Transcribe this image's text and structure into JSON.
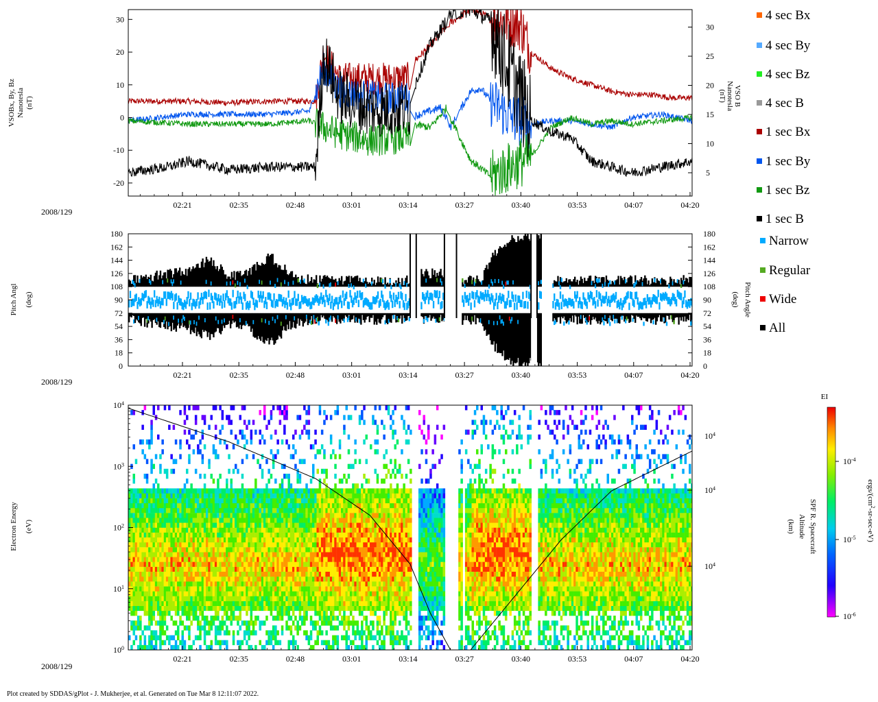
{
  "chart_data": [
    {
      "type": "line",
      "id": "mag-panel",
      "ylabel_left": [
        "VSOBx, By, Bz",
        "Nanotesla",
        "(nT)"
      ],
      "ylabel_right": [
        "VSO B",
        "Nanotesla",
        "(nT)"
      ],
      "ylim_left": [
        -24,
        33
      ],
      "ylim_right": [
        1,
        33
      ],
      "yticks_left": [
        "30",
        "20",
        "10",
        "0",
        "-10",
        "-20"
      ],
      "yticks_right": [
        "30",
        "25",
        "20",
        "15",
        "10",
        "5"
      ],
      "date": "2008/129",
      "x_time_min": [
        -30,
        250
      ],
      "xticks": [
        "02:21",
        "02:35",
        "02:48",
        "03:01",
        "03:14",
        "03:27",
        "03:40",
        "03:53",
        "04:07",
        "04:20"
      ],
      "series": [
        {
          "name": "1 sec Bx",
          "color": "#aa0000",
          "points": [
            [
              -30,
              5
            ],
            [
              0,
              5
            ],
            [
              20,
              4.5
            ],
            [
              40,
              5
            ],
            [
              63,
              5
            ],
            [
              67,
              20
            ],
            [
              75,
              12
            ],
            [
              95,
              12
            ],
            [
              110,
              12
            ],
            [
              110,
              16
            ],
            [
              120,
              22
            ],
            [
              130,
              29
            ],
            [
              140,
              33
            ],
            [
              145,
              32
            ],
            [
              150,
              30
            ],
            [
              160,
              29
            ],
            [
              165,
              28
            ],
            [
              170,
              20
            ],
            [
              180,
              15
            ],
            [
              190,
              12
            ],
            [
              200,
              10
            ],
            [
              210,
              8
            ],
            [
              220,
              7
            ],
            [
              230,
              7
            ],
            [
              240,
              6
            ],
            [
              250,
              6
            ]
          ]
        },
        {
          "name": "1 sec By",
          "color": "#0055ee",
          "points": [
            [
              -30,
              -1
            ],
            [
              0,
              1
            ],
            [
              20,
              1
            ],
            [
              40,
              1
            ],
            [
              60,
              2
            ],
            [
              67,
              15
            ],
            [
              75,
              8
            ],
            [
              95,
              6
            ],
            [
              110,
              6
            ],
            [
              110,
              0
            ],
            [
              120,
              2
            ],
            [
              125,
              3
            ],
            [
              128,
              0
            ],
            [
              130,
              -3
            ],
            [
              140,
              8
            ],
            [
              145,
              9
            ],
            [
              150,
              5
            ],
            [
              160,
              0
            ],
            [
              170,
              -2
            ],
            [
              180,
              -1
            ],
            [
              190,
              -1
            ],
            [
              200,
              -2
            ],
            [
              210,
              -3
            ],
            [
              220,
              0
            ],
            [
              235,
              1
            ],
            [
              250,
              -1
            ]
          ]
        },
        {
          "name": "1 sec Bz",
          "color": "#119911",
          "points": [
            [
              -30,
              -1
            ],
            [
              0,
              -2
            ],
            [
              20,
              -2
            ],
            [
              40,
              -2
            ],
            [
              60,
              -1
            ],
            [
              67,
              -3
            ],
            [
              75,
              -5
            ],
            [
              90,
              -7
            ],
            [
              110,
              -6
            ],
            [
              110,
              -2
            ],
            [
              120,
              -3
            ],
            [
              128,
              3
            ],
            [
              130,
              0
            ],
            [
              140,
              -13
            ],
            [
              150,
              -18
            ],
            [
              160,
              -15
            ],
            [
              170,
              -12
            ],
            [
              180,
              -3
            ],
            [
              190,
              0
            ],
            [
              200,
              -2
            ],
            [
              210,
              -1
            ],
            [
              220,
              -2
            ],
            [
              235,
              -1
            ],
            [
              250,
              0
            ]
          ]
        },
        {
          "name": "1 sec B",
          "color": "#000000",
          "points": [
            [
              -30,
              5
            ],
            [
              -10,
              6
            ],
            [
              0,
              7
            ],
            [
              20,
              5.5
            ],
            [
              40,
              6
            ],
            [
              63,
              6
            ],
            [
              67,
              25
            ],
            [
              75,
              18
            ],
            [
              90,
              16
            ],
            [
              110,
              16
            ],
            [
              110,
              18
            ],
            [
              120,
              27
            ],
            [
              130,
              32
            ],
            [
              140,
              33
            ],
            [
              150,
              31
            ],
            [
              160,
              22
            ],
            [
              170,
              14
            ],
            [
              180,
              12
            ],
            [
              190,
              11
            ],
            [
              200,
              7
            ],
            [
              210,
              6
            ],
            [
              220,
              5
            ],
            [
              235,
              6
            ],
            [
              250,
              7
            ]
          ]
        }
      ]
    },
    {
      "type": "scatter",
      "id": "pitch-panel",
      "ylabel_left": [
        "Pitch Angl",
        "(deg)"
      ],
      "ylabel_right": [
        "Pitch Angle",
        "(deg)"
      ],
      "ylim": [
        0,
        180
      ],
      "yticks": [
        "180",
        "162",
        "144",
        "126",
        "108",
        "90",
        "72",
        "54",
        "36",
        "18",
        "0"
      ],
      "date": "2008/129",
      "x_time_min": [
        -30,
        250
      ],
      "xticks": [
        "02:21",
        "02:35",
        "02:48",
        "03:01",
        "03:14",
        "03:27",
        "03:40",
        "03:53",
        "04:07",
        "04:20"
      ],
      "series_names": [
        "Narrow",
        "Regular",
        "Wide",
        "All"
      ],
      "envelope_upper": [
        [
          -30,
          117
        ],
        [
          0,
          130
        ],
        [
          10,
          145
        ],
        [
          20,
          122
        ],
        [
          30,
          130
        ],
        [
          40,
          150
        ],
        [
          50,
          125
        ],
        [
          60,
          117
        ],
        [
          80,
          117
        ],
        [
          100,
          117
        ],
        [
          110,
          117
        ],
        [
          110,
          180
        ],
        [
          115,
          180
        ],
        [
          115,
          126
        ],
        [
          128,
          126
        ],
        [
          128,
          180
        ],
        [
          135,
          180
        ],
        [
          135,
          117
        ],
        [
          145,
          117
        ],
        [
          150,
          150
        ],
        [
          160,
          175
        ],
        [
          175,
          175
        ],
        [
          175,
          180
        ],
        [
          180,
          180
        ],
        [
          180,
          117
        ],
        [
          200,
          117
        ],
        [
          220,
          117
        ],
        [
          250,
          117
        ]
      ],
      "envelope_lower": [
        [
          -30,
          63
        ],
        [
          0,
          50
        ],
        [
          10,
          40
        ],
        [
          20,
          58
        ],
        [
          30,
          50
        ],
        [
          40,
          30
        ],
        [
          50,
          55
        ],
        [
          60,
          63
        ],
        [
          80,
          63
        ],
        [
          100,
          63
        ],
        [
          110,
          63
        ],
        [
          110,
          0
        ],
        [
          115,
          0
        ],
        [
          115,
          63
        ],
        [
          128,
          63
        ],
        [
          128,
          0
        ],
        [
          135,
          0
        ],
        [
          135,
          63
        ],
        [
          145,
          63
        ],
        [
          150,
          30
        ],
        [
          160,
          5
        ],
        [
          175,
          5
        ],
        [
          175,
          0
        ],
        [
          180,
          0
        ],
        [
          180,
          63
        ],
        [
          200,
          63
        ],
        [
          220,
          63
        ],
        [
          250,
          63
        ]
      ]
    },
    {
      "type": "heatmap",
      "id": "spectrogram-panel",
      "ylabel_left": [
        "Electron Energy",
        "(eV)"
      ],
      "ylabel_right": [
        "SPF R. Spacecraft",
        "Altitude",
        "(km)"
      ],
      "yticks_left": [
        "10^4",
        "10^3",
        "10^2",
        "10^1",
        "10^0"
      ],
      "yticks_right": [
        "10^4",
        "10^4",
        "10^4"
      ],
      "ylim_log10": [
        0,
        4
      ],
      "date": "2008/129",
      "x_time_min": [
        -30,
        250
      ],
      "xticks": [
        "02:21",
        "02:35",
        "02:48",
        "03:01",
        "03:14",
        "03:27",
        "03:40",
        "03:53",
        "04:07",
        "04:20"
      ],
      "colorbar": {
        "title": "EI",
        "label": "ergs/(cm^2-sr-sec-eV)",
        "ticks": [
          "10^-4",
          "10^-5",
          "10^-6"
        ]
      },
      "altitude_curve": [
        [
          -30,
          3.95
        ],
        [
          20,
          3.4
        ],
        [
          63,
          2.8
        ],
        [
          90,
          2.2
        ],
        [
          110,
          1.4
        ],
        [
          120,
          0.6
        ],
        [
          130,
          0.0
        ],
        [
          140,
          0.0
        ],
        [
          160,
          0.8
        ],
        [
          185,
          1.8
        ],
        [
          210,
          2.6
        ],
        [
          250,
          3.25
        ]
      ],
      "data_gaps": [
        [
          110,
          113
        ],
        [
          127,
          133
        ],
        [
          135,
          137
        ],
        [
          170,
          173
        ]
      ]
    }
  ],
  "legend": [
    {
      "label": "4 sec Bx",
      "color": "#ff6600"
    },
    {
      "label": "4 sec By",
      "color": "#55aaff"
    },
    {
      "label": "4 sec Bz",
      "color": "#22ee22"
    },
    {
      "label": "4 sec B",
      "color": "#999999"
    },
    {
      "label": "1 sec Bx",
      "color": "#aa0000"
    },
    {
      "label": "1 sec By",
      "color": "#0055ee"
    },
    {
      "label": "1 sec Bz",
      "color": "#119911"
    },
    {
      "label": "1 sec B",
      "color": "#000000"
    },
    {
      "label": "Narrow",
      "color": "#00aaff"
    },
    {
      "label": "Regular",
      "color": "#55aa22"
    },
    {
      "label": "Wide",
      "color": "#ee0000"
    },
    {
      "label": "All",
      "color": "#000000"
    }
  ],
  "footer": "Plot created by SDDAS/gPlot - J. Mukherjee, et al.  Generated on Tue Mar 8 12:11:07 2022."
}
